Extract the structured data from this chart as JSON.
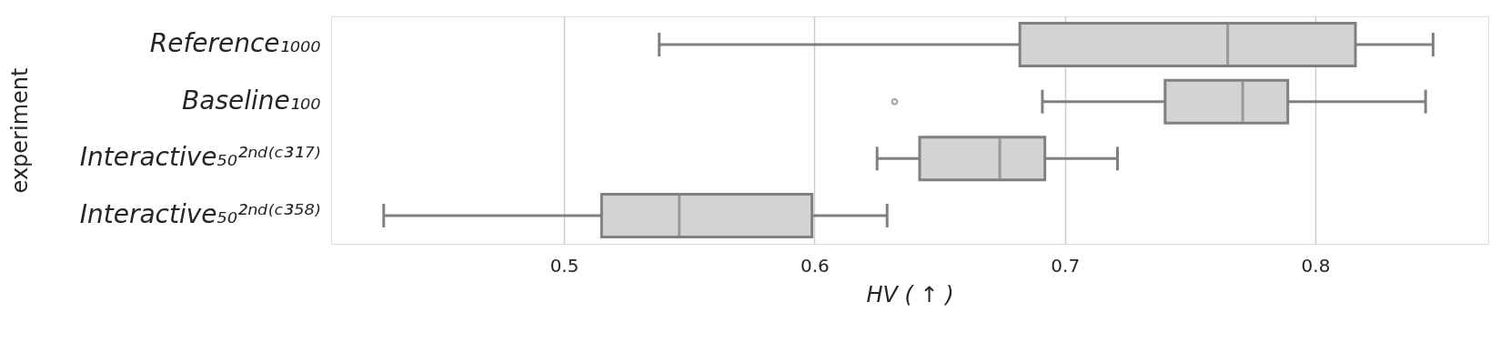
{
  "chart_data": {
    "type": "box",
    "orientation": "horizontal",
    "categories": [
      "Reference₁₀₀₀",
      "Baseline₁₀₀",
      "Interactive₅₀²ⁿᵈ⁽ᶜ³¹⁷⁾",
      "Interactive₅₀²ⁿᵈ⁽ᶜ³⁵⁸⁾"
    ],
    "boxes": [
      {
        "low": 0.538,
        "q1": 0.682,
        "median": 0.765,
        "q3": 0.816,
        "high": 0.847
      },
      {
        "low": 0.691,
        "q1": 0.74,
        "median": 0.771,
        "q3": 0.789,
        "high": 0.844,
        "outliers": [
          0.632
        ]
      },
      {
        "low": 0.625,
        "q1": 0.642,
        "median": 0.674,
        "q3": 0.692,
        "high": 0.721
      },
      {
        "low": 0.428,
        "q1": 0.515,
        "median": 0.546,
        "q3": 0.599,
        "high": 0.629
      }
    ],
    "colors": [
      "#d3d3d3",
      "#d3d3d3",
      "#d3d3d3",
      "#d3d3d3"
    ],
    "xlim": [
      0.407,
      0.869
    ],
    "xticks": [
      0.5,
      0.6,
      0.7,
      0.8
    ],
    "xlabel": "HV ( ↑ )",
    "ylabel": "experiment",
    "grid": "x"
  }
}
